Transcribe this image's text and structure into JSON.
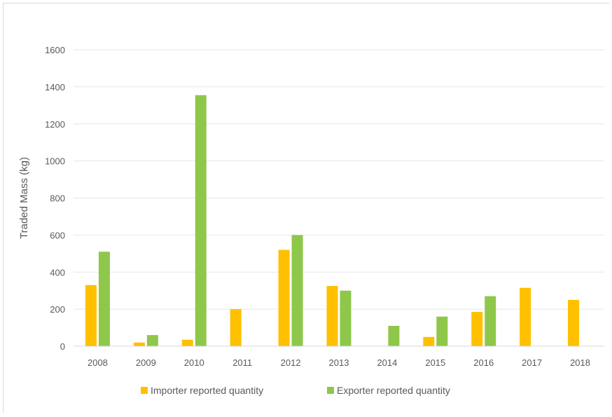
{
  "chart_data": {
    "type": "bar",
    "title": "",
    "xlabel": "",
    "ylabel": "Traded Mass (kg)",
    "ylim": [
      0,
      1600
    ],
    "yticks": [
      0,
      200,
      400,
      600,
      800,
      1000,
      1200,
      1400,
      1600
    ],
    "grid": true,
    "legend_position": "bottom",
    "categories": [
      "2008",
      "2009",
      "2010",
      "2011",
      "2012",
      "2013",
      "2014",
      "2015",
      "2016",
      "2017",
      "2018"
    ],
    "series": [
      {
        "name": "Importer reported quantity",
        "color": "#ffc000",
        "values": [
          330,
          20,
          35,
          200,
          520,
          325,
          0,
          50,
          185,
          315,
          250
        ]
      },
      {
        "name": "Exporter reported quantity",
        "color": "#8fc74a",
        "values": [
          510,
          60,
          1355,
          0,
          600,
          300,
          110,
          160,
          270,
          0,
          0
        ]
      }
    ]
  }
}
